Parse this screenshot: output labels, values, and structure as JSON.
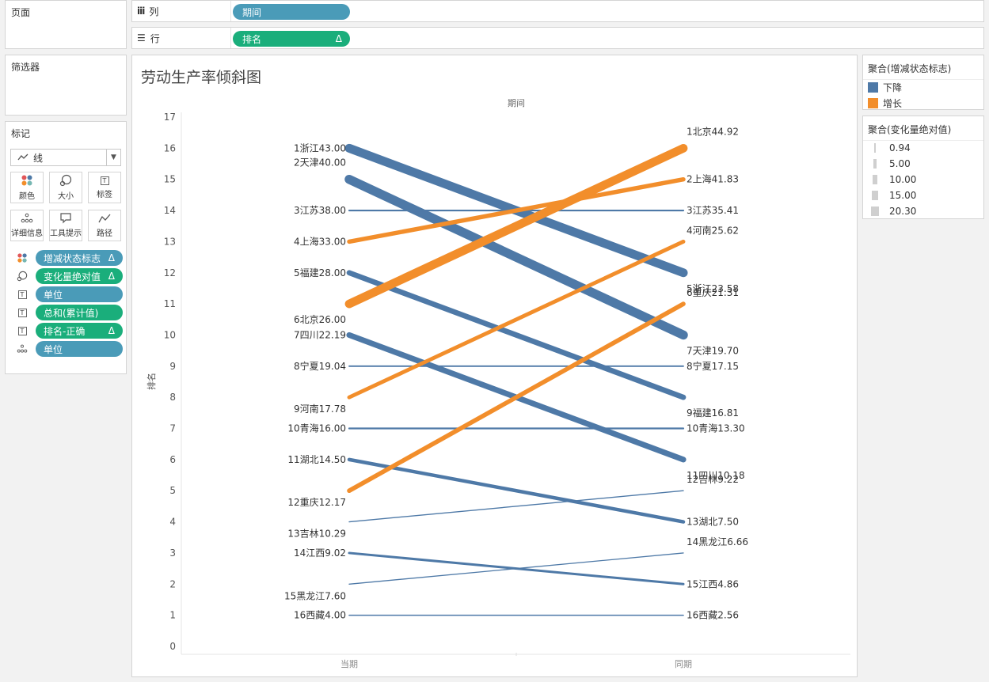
{
  "pages_panel": {
    "title": "页面"
  },
  "filters_panel": {
    "title": "筛选器"
  },
  "columns_shelf": {
    "label": "列",
    "pill": "期间"
  },
  "rows_shelf": {
    "label": "行",
    "pill": "排名",
    "pill_delta": "Δ"
  },
  "marks_panel": {
    "title": "标记",
    "mark_type": "线",
    "buttons": [
      {
        "label": "颜色",
        "icon": "color-icon"
      },
      {
        "label": "大小",
        "icon": "size-icon"
      },
      {
        "label": "标签",
        "icon": "label-icon"
      },
      {
        "label": "详细信息",
        "icon": "detail-icon"
      },
      {
        "label": "工具提示",
        "icon": "tooltip-icon"
      },
      {
        "label": "路径",
        "icon": "path-icon"
      }
    ],
    "fields": [
      {
        "icon": "color-icon",
        "label": "增减状态标志",
        "delta": "Δ",
        "color": "blue"
      },
      {
        "icon": "size-icon",
        "label": "变化量绝对值",
        "delta": "Δ",
        "color": "green"
      },
      {
        "icon": "label-icon",
        "label": "单位",
        "delta": "",
        "color": "blue"
      },
      {
        "icon": "label-icon",
        "label": "总和(累计值)",
        "delta": "",
        "color": "green"
      },
      {
        "icon": "label-icon",
        "label": "排名-正确",
        "delta": "Δ",
        "color": "green"
      },
      {
        "icon": "detail-icon",
        "label": "单位",
        "delta": "",
        "color": "blue"
      }
    ]
  },
  "color_legend": {
    "title": "聚合(增减状态标志)",
    "items": [
      {
        "label": "下降",
        "color": "#4e79a7"
      },
      {
        "label": "增长",
        "color": "#f28e2b"
      }
    ]
  },
  "size_legend": {
    "title": "聚合(变化量绝对值)",
    "items": [
      "0.94",
      "5.00",
      "10.00",
      "15.00",
      "20.30"
    ]
  },
  "chart_data": {
    "type": "line",
    "title": "劳动生产率倾斜图",
    "column_header": "期间",
    "xlabel": "",
    "ylabel": "排名",
    "categories": [
      "当期",
      "同期"
    ],
    "ylim": [
      0,
      17
    ],
    "y_ticks": [
      "0",
      "1",
      "2",
      "3",
      "4",
      "5",
      "6",
      "7",
      "8",
      "9",
      "10",
      "11",
      "12",
      "13",
      "14",
      "15",
      "16",
      "17"
    ],
    "series": [
      {
        "name": "浙江",
        "status": "下降",
        "change": 19.42,
        "values": [
          16,
          12
        ],
        "left_label": "1浙江43.00",
        "right_label": "5浙江23.58"
      },
      {
        "name": "天津",
        "status": "下降",
        "change": 20.3,
        "values": [
          15,
          10
        ],
        "left_label": "2天津40.00",
        "right_label": "7天津19.70"
      },
      {
        "name": "江苏",
        "status": "下降",
        "change": 2.59,
        "values": [
          14,
          14
        ],
        "left_label": "3江苏38.00",
        "right_label": "3江苏35.41"
      },
      {
        "name": "上海",
        "status": "增长",
        "change": 8.83,
        "values": [
          13,
          15
        ],
        "left_label": "4上海33.00",
        "right_label": "2上海41.83"
      },
      {
        "name": "福建",
        "status": "下降",
        "change": 11.19,
        "values": [
          12,
          8
        ],
        "left_label": "5福建28.00",
        "right_label": "9福建16.81"
      },
      {
        "name": "北京",
        "status": "增长",
        "change": 18.92,
        "values": [
          11,
          16
        ],
        "left_label": "6北京26.00",
        "right_label": "1北京44.92"
      },
      {
        "name": "四川",
        "status": "下降",
        "change": 12.01,
        "values": [
          10,
          6
        ],
        "left_label": "7四川22.19",
        "right_label": "11四川10.18"
      },
      {
        "name": "宁夏",
        "status": "下降",
        "change": 1.89,
        "values": [
          9,
          9
        ],
        "left_label": "8宁夏19.04",
        "right_label": "8宁夏17.15"
      },
      {
        "name": "河南",
        "status": "增长",
        "change": 7.84,
        "values": [
          8,
          13
        ],
        "left_label": "9河南17.78",
        "right_label": "4河南25.62"
      },
      {
        "name": "青海",
        "status": "下降",
        "change": 2.7,
        "values": [
          7,
          7
        ],
        "left_label": "10青海16.00",
        "right_label": "10青海13.30"
      },
      {
        "name": "湖北",
        "status": "下降",
        "change": 7.0,
        "values": [
          6,
          4
        ],
        "left_label": "11湖北14.50",
        "right_label": "13湖北7.50"
      },
      {
        "name": "重庆",
        "status": "增长",
        "change": 9.14,
        "values": [
          5,
          11
        ],
        "left_label": "12重庆12.17",
        "right_label": "6重庆21.31"
      },
      {
        "name": "吉林",
        "status": "下降",
        "change": 1.07,
        "values": [
          4,
          5
        ],
        "left_label": "13吉林10.29",
        "right_label": "12吉林9.22"
      },
      {
        "name": "江西",
        "status": "下降",
        "change": 4.16,
        "values": [
          3,
          2
        ],
        "left_label": "14江西9.02",
        "right_label": "15江西4.86"
      },
      {
        "name": "黑龙江",
        "status": "下降",
        "change": 0.94,
        "values": [
          2,
          3
        ],
        "left_label": "15黑龙江7.60",
        "right_label": "14黑龙江6.66"
      },
      {
        "name": "西藏",
        "status": "下降",
        "change": 1.44,
        "values": [
          1,
          1
        ],
        "left_label": "16西藏4.00",
        "right_label": "16西藏2.56"
      }
    ]
  }
}
